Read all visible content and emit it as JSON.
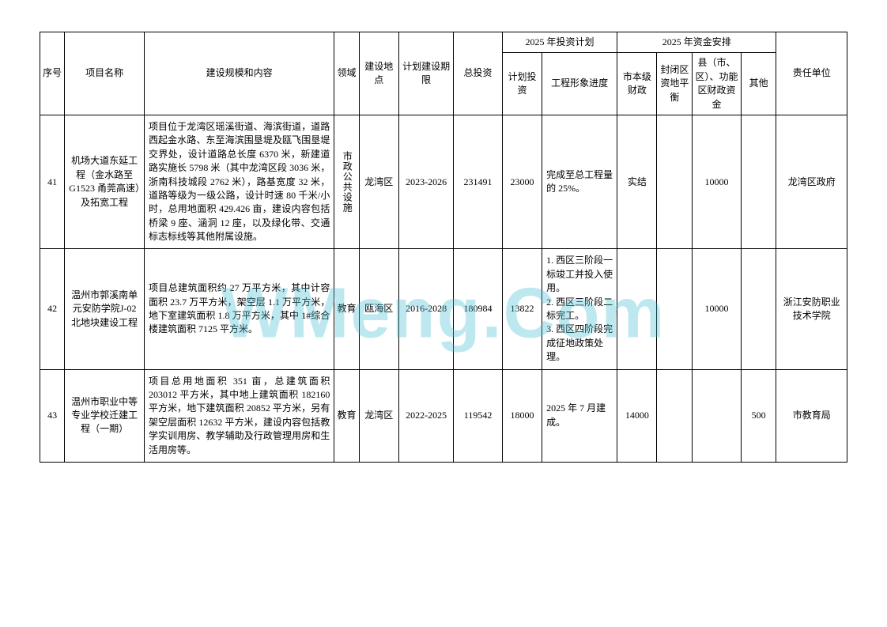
{
  "watermark": "WMeng.Com",
  "headers": {
    "seq": "序号",
    "name": "项目名称",
    "content": "建设规模和内容",
    "domain": "领域",
    "location": "建设地点",
    "period": "计划建设期限",
    "total": "总投资",
    "plan_group": "2025 年投资计划",
    "plan_inv": "计划投资",
    "progress": "工程形象进度",
    "fund_group": "2025 年资金安排",
    "city": "市本级财政",
    "closed": "封闭区资地平衡",
    "county": "县（市、区）、功能区财政资金",
    "other": "其他",
    "resp": "责任单位"
  },
  "rows": [
    {
      "seq": "41",
      "name": "机场大道东延工程（金水路至G1523 甬莞高速）及拓宽工程",
      "content": "项目位于龙湾区瑶溪街道、海滨街道，道路西起金水路、东至海滨围垦堤及瓯飞围垦堤交界处，设计道路总长度 6370 米，新建道路实施长 5798 米（其中龙湾区段 3036 米，浙南科技城段 2762 米），路基宽度 32 米，道路等级为一级公路，设计时速 80 千米/小时，总用地面积 429.426 亩，建设内容包括桥梁 9 座、涵洞 12 座，以及绿化带、交通标志标线等其他附属设施。",
      "domain": "市政公共设施",
      "location": "龙湾区",
      "period": "2023-2026",
      "total": "231491",
      "plan_inv": "23000",
      "progress": "完成至总工程量的 25%。",
      "city": "实结",
      "closed": "",
      "county": "10000",
      "other": "",
      "resp": "龙湾区政府"
    },
    {
      "seq": "42",
      "name": "温州市郭溪南单元安防学院J-02 北地块建设工程",
      "content": "项目总建筑面积约 27 万平方米，其中计容面积 23.7 万平方米，架空层 1.1 万平方米，地下室建筑面积 1.8 万平方米，其中 1#综合楼建筑面积 7125 平方米。",
      "domain": "教育",
      "location": "瓯海区",
      "period": "2016-2028",
      "total": "180984",
      "plan_inv": "13822",
      "progress": "1. 西区三阶段一标竣工并投入使用。\n2. 西区三阶段二标完工。\n3. 西区四阶段完成征地政策处理。",
      "city": "",
      "closed": "",
      "county": "10000",
      "other": "",
      "resp": "浙江安防职业技术学院"
    },
    {
      "seq": "43",
      "name": "温州市职业中等专业学校迁建工程（一期）",
      "content": "项目总用地面积 351 亩，总建筑面积 203012 平方米，其中地上建筑面积 182160 平方米，地下建筑面积 20852 平方米，另有架空层面积 12632 平方米，建设内容包括教学实训用房、教学辅助及行政管理用房和生活用房等。",
      "domain": "教育",
      "location": "龙湾区",
      "period": "2022-2025",
      "total": "119542",
      "plan_inv": "18000",
      "progress": "2025 年 7 月建成。",
      "city": "14000",
      "closed": "",
      "county": "",
      "other": "500",
      "resp": "市教育局"
    }
  ],
  "style": {
    "background_color": "#ffffff",
    "border_color": "#000000",
    "font_size_cell": 12,
    "watermark_color": "rgba(70,190,210,0.35)"
  }
}
